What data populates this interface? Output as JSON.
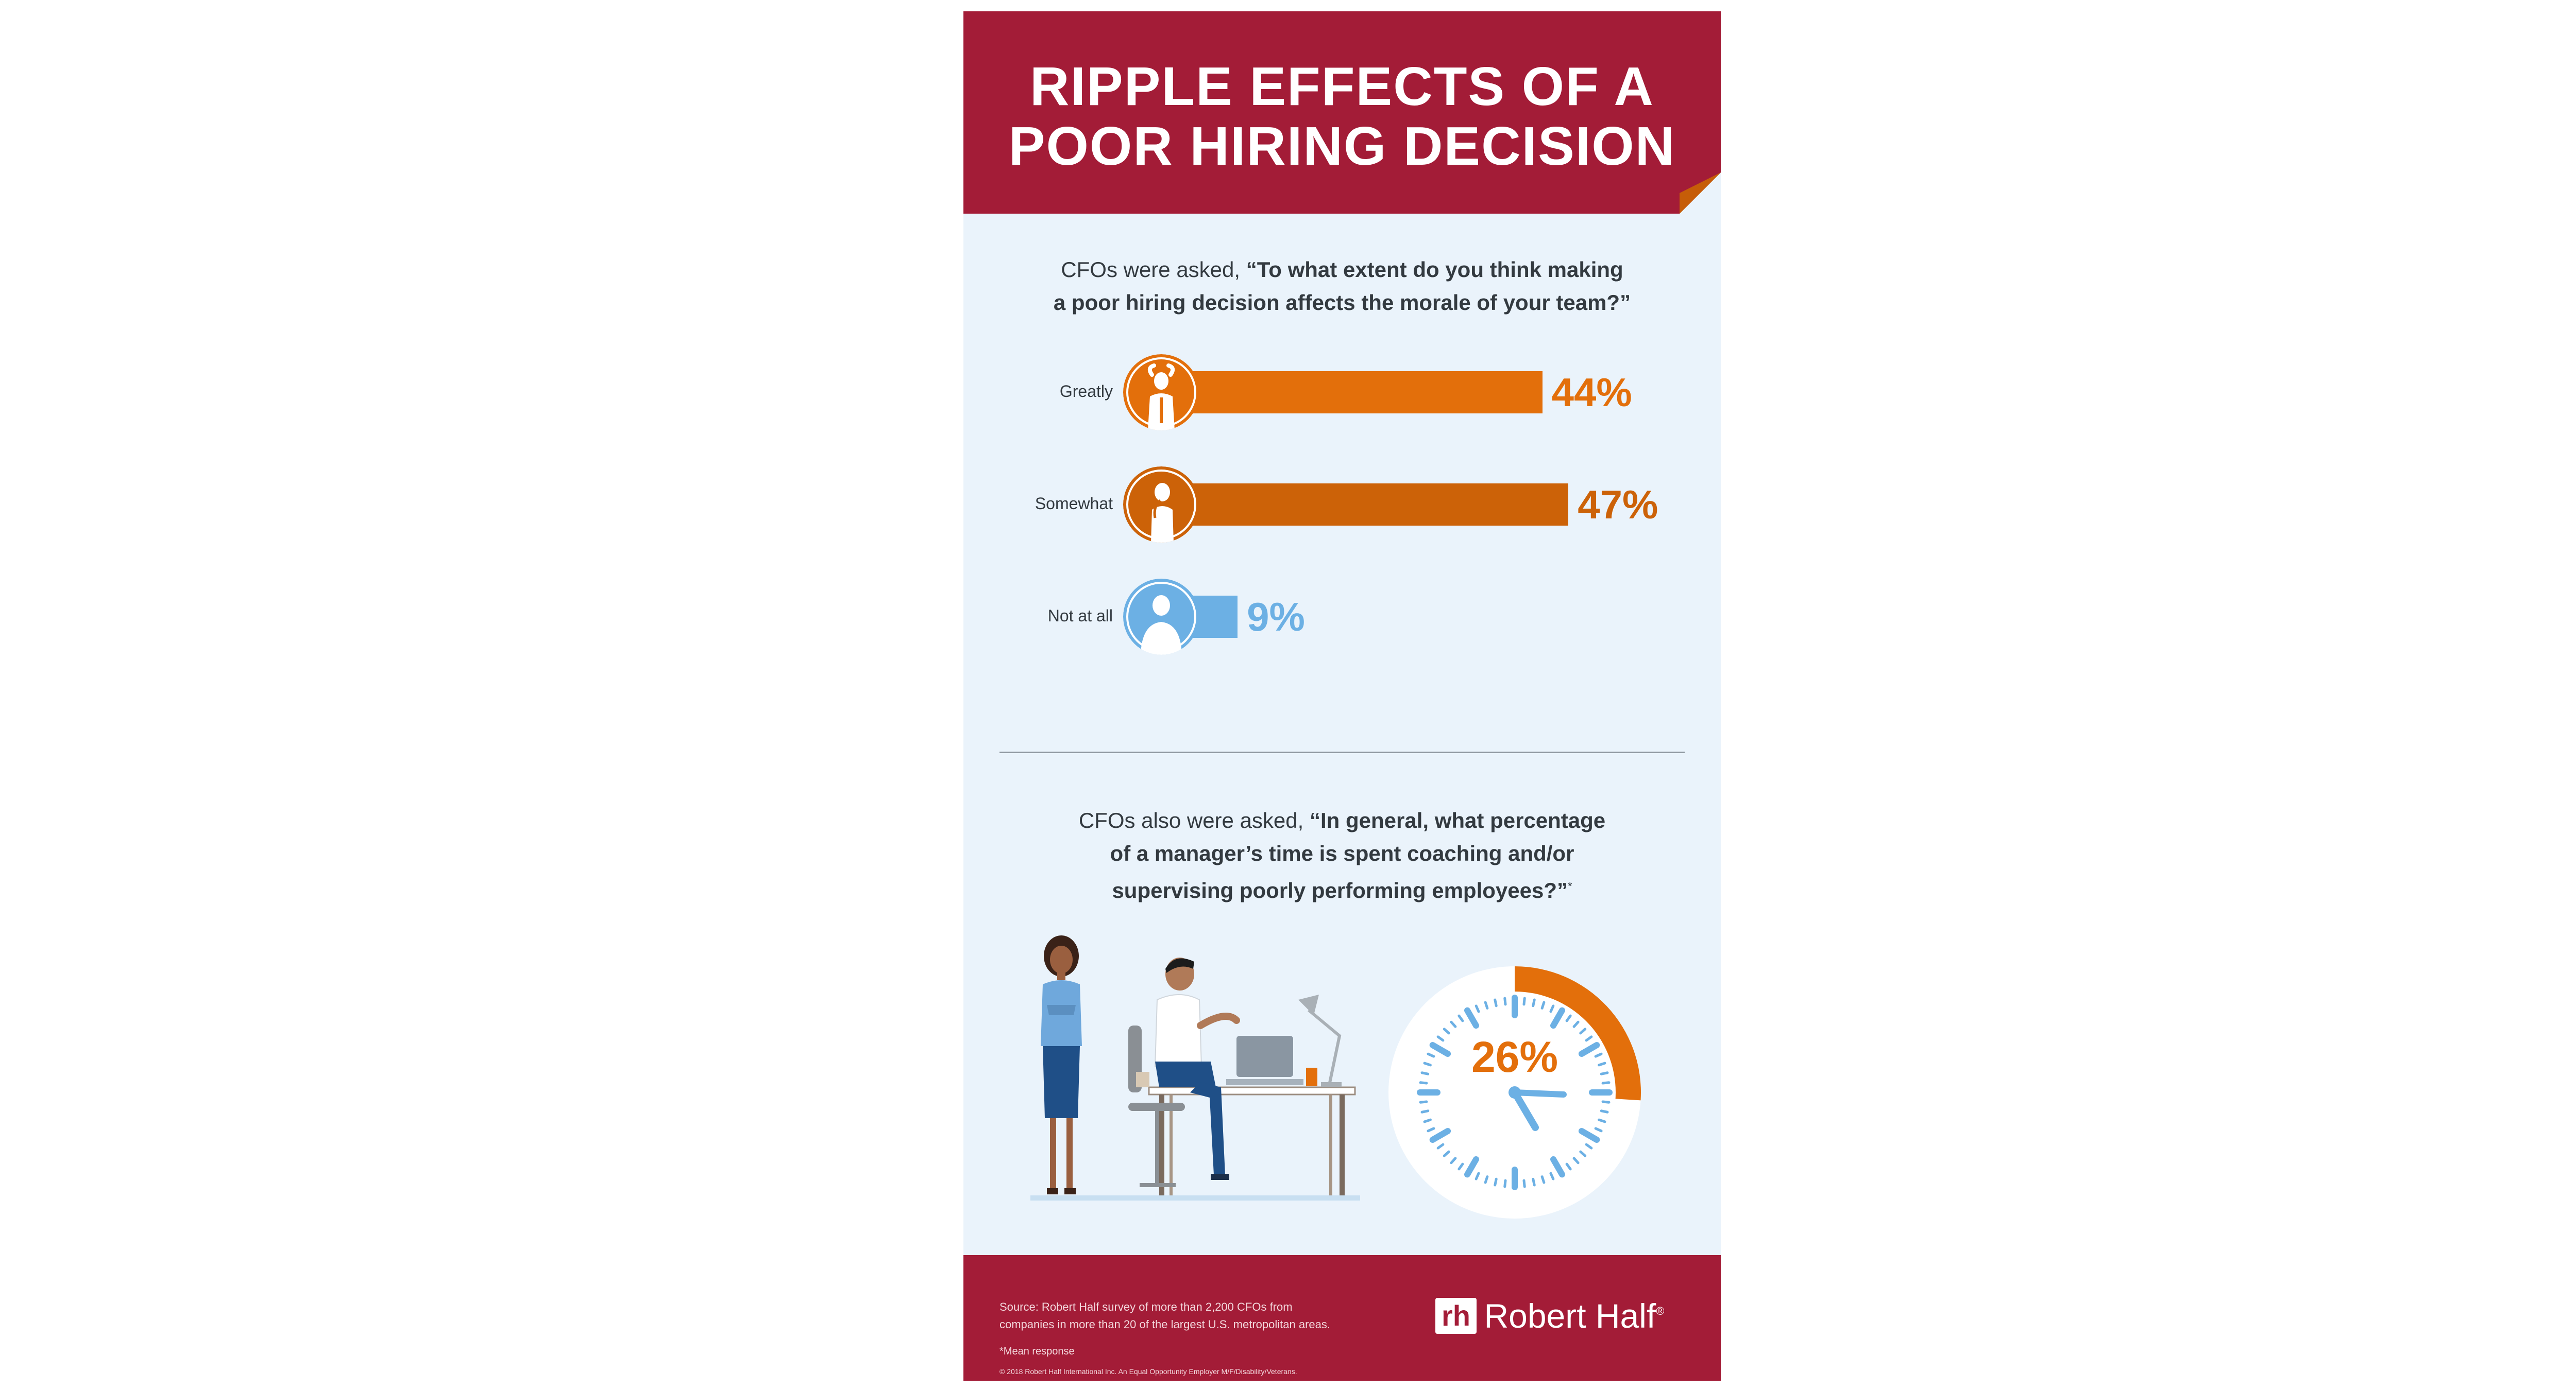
{
  "title_line1": "RIPPLE EFFECTS OF A",
  "title_line2": "POOR HIRING DECISION",
  "question1": {
    "intro": "CFOs were asked, ",
    "line1_bold": "“To what extent do you think making",
    "line2_bold": "a poor hiring decision affects the morale of your team?”"
  },
  "chart_data": [
    {
      "type": "bar",
      "orientation": "horizontal",
      "categories": [
        "Greatly",
        "Somewhat",
        "Not at all"
      ],
      "values": [
        44,
        47,
        9
      ],
      "value_labels": [
        "44%",
        "47%",
        "9%"
      ],
      "colors": [
        "#e36f0b",
        "#cc6208",
        "#6cb0e4"
      ],
      "xlim": [
        0,
        100
      ]
    },
    {
      "type": "pie",
      "categories": [
        "time spent coaching and/or supervising poorly performing employees",
        "other"
      ],
      "values": [
        26,
        74
      ],
      "value_label": "26%",
      "colors": [
        "#e36f0b",
        "#ffffff"
      ]
    }
  ],
  "question2": {
    "intro": "CFOs also were asked, ",
    "line1_bold": "“In general, what percentage",
    "line2_bold": "of a manager’s time is spent coaching and/or",
    "line3_bold": "supervising poorly performing employees?”",
    "footnote_mark": "*"
  },
  "footer": {
    "source_line1": "Source: Robert Half survey of more than 2,200 CFOs from",
    "source_line2": "companies in more than 20 of the largest U.S. metropolitan areas.",
    "mean_note": "*Mean response",
    "copyright": "© 2018 Robert Half International Inc. An Equal Opportunity Employer M/F/Disability/Veterans.",
    "logo_mark": "rh",
    "logo_text": "Robert Half",
    "logo_registered": "®"
  },
  "colors": {
    "header": "#a31c37",
    "background": "#eaf3fb",
    "orange": "#e36f0b",
    "dark_orange": "#cc6208",
    "blue": "#6cb0e4",
    "text": "#333a40"
  },
  "icons": [
    "frustrated-person-icon",
    "thinking-person-icon",
    "neutral-person-icon",
    "clock-icon",
    "robert-half-logo"
  ]
}
